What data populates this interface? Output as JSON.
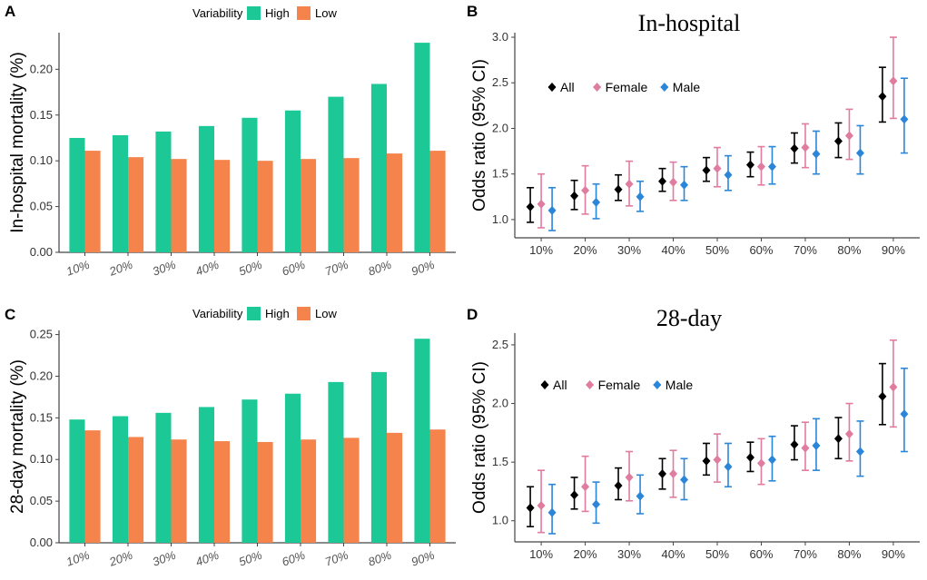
{
  "colors": {
    "high": "#1dc897",
    "low": "#f5844c",
    "all": "#000000",
    "female": "#e07ca0",
    "male": "#2b86d9",
    "axis": "#444444"
  },
  "chart_data": [
    {
      "id": "A",
      "panel_label": "A",
      "type": "bar",
      "ylabel": "In-hospital mortality (%)",
      "legend_title": "Variability",
      "legend_position": "top",
      "categories": [
        "10%",
        "20%",
        "30%",
        "40%",
        "50%",
        "60%",
        "70%",
        "80%",
        "90%"
      ],
      "series": [
        {
          "name": "High",
          "values": [
            0.125,
            0.128,
            0.132,
            0.138,
            0.147,
            0.155,
            0.17,
            0.184,
            0.229
          ]
        },
        {
          "name": "Low",
          "values": [
            0.111,
            0.104,
            0.102,
            0.101,
            0.1,
            0.102,
            0.103,
            0.108,
            0.111
          ]
        }
      ],
      "ylim": [
        0,
        0.24
      ],
      "yticks": [
        0.0,
        0.05,
        0.1,
        0.15,
        0.2
      ],
      "ytick_labels": [
        "0.00",
        "0.05",
        "0.10",
        "0.15",
        "0.20"
      ]
    },
    {
      "id": "B",
      "panel_label": "B",
      "type": "errorbar",
      "title": "In-hospital",
      "ylabel": "Odds ratio (95% CI)",
      "legend_position": "top-left",
      "categories": [
        "10%",
        "20%",
        "30%",
        "40%",
        "50%",
        "60%",
        "70%",
        "80%",
        "90%"
      ],
      "series": [
        {
          "name": "All",
          "values": [
            1.14,
            1.26,
            1.33,
            1.42,
            1.54,
            1.6,
            1.78,
            1.86,
            2.35
          ],
          "lower": [
            0.97,
            1.11,
            1.21,
            1.31,
            1.42,
            1.47,
            1.62,
            1.68,
            2.07
          ],
          "upper": [
            1.35,
            1.43,
            1.49,
            1.56,
            1.68,
            1.74,
            1.95,
            2.06,
            2.67
          ]
        },
        {
          "name": "Female",
          "values": [
            1.17,
            1.32,
            1.39,
            1.41,
            1.56,
            1.58,
            1.79,
            1.92,
            2.52
          ],
          "lower": [
            0.91,
            1.06,
            1.15,
            1.21,
            1.36,
            1.38,
            1.57,
            1.66,
            2.11
          ],
          "upper": [
            1.5,
            1.59,
            1.64,
            1.63,
            1.79,
            1.8,
            2.05,
            2.21,
            3.0
          ]
        },
        {
          "name": "Male",
          "values": [
            1.1,
            1.19,
            1.25,
            1.38,
            1.49,
            1.58,
            1.72,
            1.73,
            2.1
          ],
          "lower": [
            0.88,
            1.01,
            1.09,
            1.21,
            1.32,
            1.39,
            1.5,
            1.5,
            1.73
          ],
          "upper": [
            1.35,
            1.39,
            1.42,
            1.58,
            1.7,
            1.8,
            1.97,
            2.03,
            2.55
          ]
        }
      ],
      "ylim": [
        0.8,
        3.05
      ],
      "yticks": [
        1.0,
        1.5,
        2.0,
        2.5,
        3.0
      ],
      "ytick_labels": [
        "1.0",
        "1.5",
        "2.0",
        "2.5",
        "3.0"
      ]
    },
    {
      "id": "C",
      "panel_label": "C",
      "type": "bar",
      "ylabel": "28-day mortality (%)",
      "legend_title": "Variability",
      "legend_position": "top",
      "categories": [
        "10%",
        "20%",
        "30%",
        "40%",
        "50%",
        "60%",
        "70%",
        "80%",
        "90%"
      ],
      "series": [
        {
          "name": "High",
          "values": [
            0.148,
            0.152,
            0.156,
            0.163,
            0.172,
            0.179,
            0.193,
            0.205,
            0.245
          ]
        },
        {
          "name": "Low",
          "values": [
            0.135,
            0.127,
            0.124,
            0.122,
            0.121,
            0.124,
            0.126,
            0.132,
            0.136
          ]
        }
      ],
      "ylim": [
        0,
        0.255
      ],
      "yticks": [
        0.0,
        0.05,
        0.1,
        0.15,
        0.2,
        0.25
      ],
      "ytick_labels": [
        "0.00",
        "0.05",
        "0.10",
        "0.15",
        "0.20",
        "0.25"
      ]
    },
    {
      "id": "D",
      "panel_label": "D",
      "type": "errorbar",
      "title": "28-day",
      "ylabel": "Odds ratio (95% CI)",
      "legend_position": "top-left",
      "categories": [
        "10%",
        "20%",
        "30%",
        "40%",
        "50%",
        "60%",
        "70%",
        "80%",
        "90%"
      ],
      "series": [
        {
          "name": "All",
          "values": [
            1.11,
            1.22,
            1.3,
            1.4,
            1.51,
            1.54,
            1.65,
            1.7,
            2.06
          ],
          "lower": [
            0.95,
            1.1,
            1.18,
            1.27,
            1.39,
            1.42,
            1.52,
            1.53,
            1.82
          ],
          "upper": [
            1.29,
            1.37,
            1.45,
            1.53,
            1.66,
            1.67,
            1.81,
            1.88,
            2.34
          ]
        },
        {
          "name": "Female",
          "values": [
            1.13,
            1.29,
            1.37,
            1.4,
            1.52,
            1.49,
            1.62,
            1.74,
            2.14
          ],
          "lower": [
            0.9,
            1.08,
            1.17,
            1.2,
            1.33,
            1.31,
            1.43,
            1.51,
            1.8
          ],
          "upper": [
            1.43,
            1.55,
            1.59,
            1.6,
            1.74,
            1.7,
            1.84,
            2.0,
            2.54
          ]
        },
        {
          "name": "Male",
          "values": [
            1.07,
            1.14,
            1.21,
            1.35,
            1.46,
            1.52,
            1.64,
            1.59,
            1.91
          ],
          "lower": [
            0.89,
            0.98,
            1.06,
            1.18,
            1.29,
            1.34,
            1.43,
            1.38,
            1.59
          ],
          "upper": [
            1.31,
            1.33,
            1.39,
            1.53,
            1.66,
            1.72,
            1.87,
            1.85,
            2.3
          ]
        }
      ],
      "ylim": [
        0.82,
        2.6
      ],
      "yticks": [
        1.0,
        1.5,
        2.0,
        2.5
      ],
      "ytick_labels": [
        "1.0",
        "1.5",
        "2.0",
        "2.5"
      ]
    }
  ]
}
